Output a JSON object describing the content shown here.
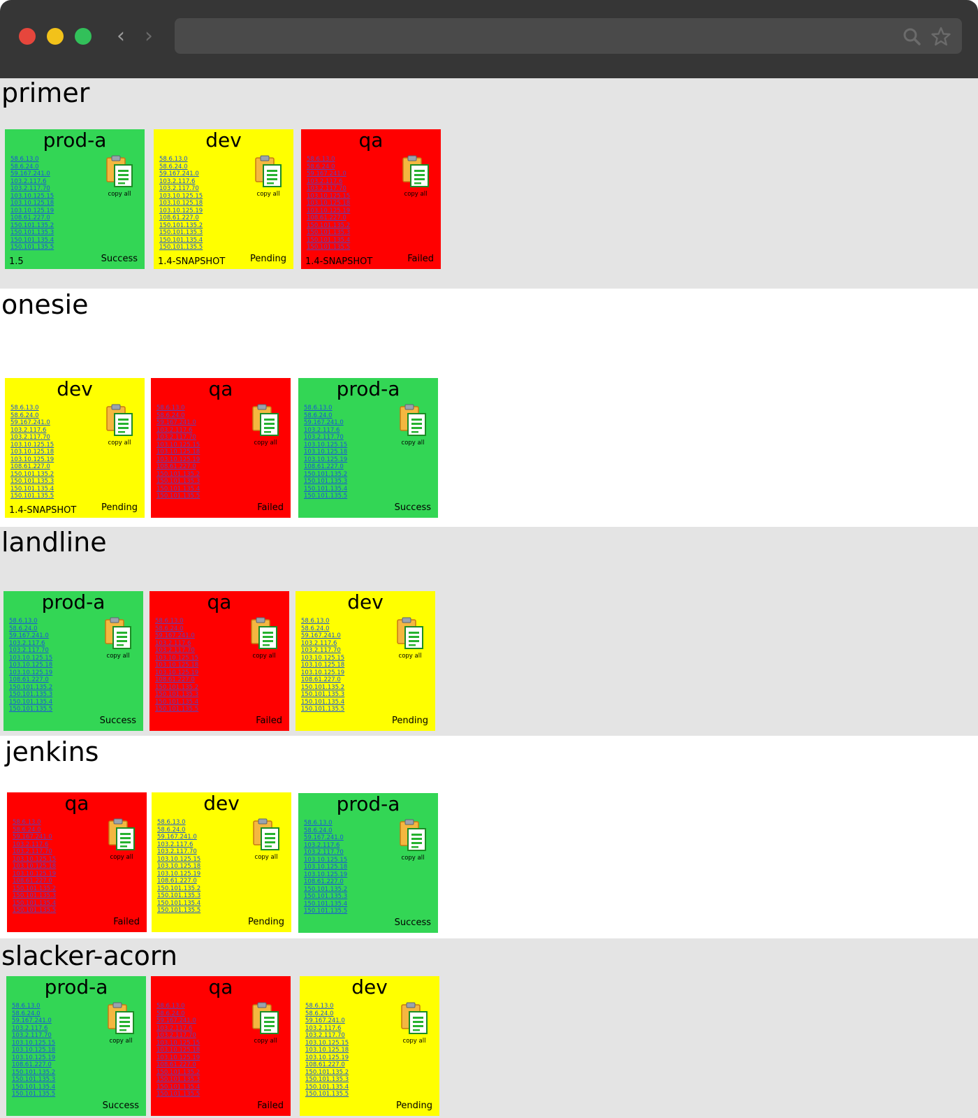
{
  "ips": [
    "58.6.13.0",
    "58.6.24.0",
    "59.167.241.0",
    "103.2.117.6",
    "103.2.117.70",
    "103.10.125.15",
    "103.10.125.18",
    "103.10.125.19",
    "108.61.227.0",
    "150.101.135.2",
    "150.101.135.3",
    "150.101.135.4",
    "150.101.135.5"
  ],
  "copy_label": "copy all",
  "sections": [
    {
      "title": "primer",
      "cards": [
        {
          "env": "prod-a",
          "status": "Success",
          "version": "1.5"
        },
        {
          "env": "dev",
          "status": "Pending",
          "version": "1.4-SNAPSHOT"
        },
        {
          "env": "qa",
          "status": "Failed",
          "version": "1.4-SNAPSHOT"
        }
      ]
    },
    {
      "title": "onesie",
      "cards": [
        {
          "env": "dev",
          "status": "Pending",
          "version": "1.4-SNAPSHOT"
        },
        {
          "env": "qa",
          "status": "Failed",
          "version": ""
        },
        {
          "env": "prod-a",
          "status": "Success",
          "version": ""
        }
      ]
    },
    {
      "title": "landline",
      "cards": [
        {
          "env": "prod-a",
          "status": "Success",
          "version": ""
        },
        {
          "env": "qa",
          "status": "Failed",
          "version": ""
        },
        {
          "env": "dev",
          "status": "Pending",
          "version": ""
        }
      ]
    },
    {
      "title": "jenkins",
      "cards": [
        {
          "env": "qa",
          "status": "Failed",
          "version": ""
        },
        {
          "env": "dev",
          "status": "Pending",
          "version": ""
        },
        {
          "env": "prod-a",
          "status": "Success",
          "version": ""
        }
      ]
    },
    {
      "title": "slacker-acorn",
      "cards": [
        {
          "env": "prod-a",
          "status": "Success",
          "version": ""
        },
        {
          "env": "qa",
          "status": "Failed",
          "version": ""
        },
        {
          "env": "dev",
          "status": "Pending",
          "version": ""
        }
      ]
    }
  ],
  "status_colors": {
    "Success": "#33d655",
    "Pending": "#ffff00",
    "Failed": "#ff0000"
  },
  "chrome": {
    "icons": [
      "close-dot",
      "minimize-dot",
      "maximize-dot",
      "back-arrow-icon",
      "forward-arrow-icon",
      "search-icon",
      "star-icon"
    ]
  }
}
